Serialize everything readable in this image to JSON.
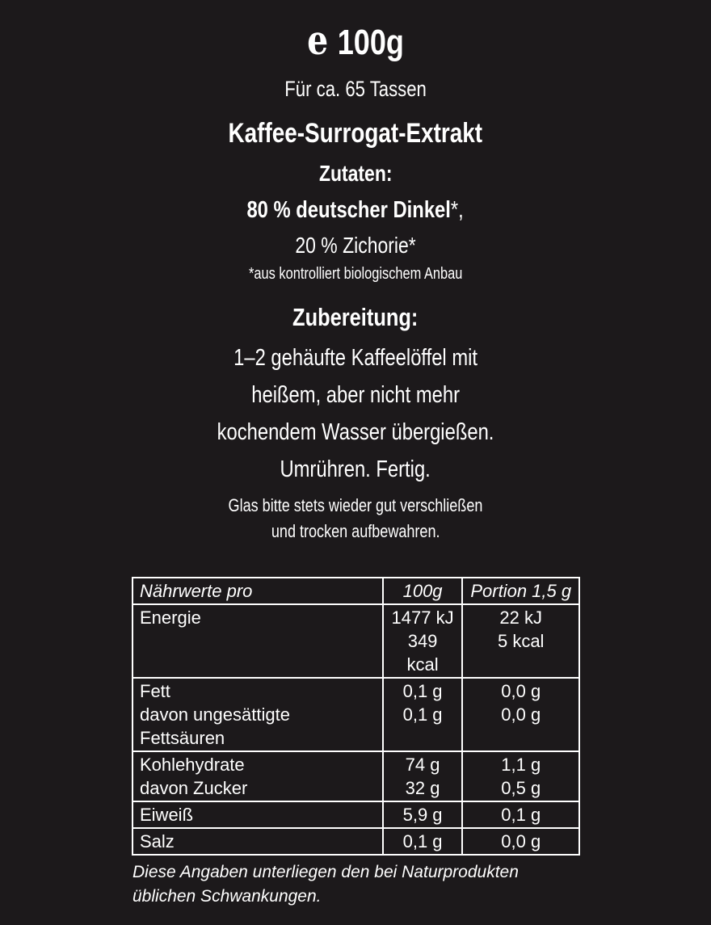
{
  "header": {
    "estimate_mark": "e",
    "net_weight": "100g",
    "servings": "Für ca. 65 Tassen",
    "product_name": "Kaffee-Surrogat-Extrakt"
  },
  "ingredients": {
    "title": "Zutaten:",
    "item1_bold": "80 % deutscher Dinkel",
    "item1_suffix": "*,",
    "item2": "20 % Zichorie*",
    "footnote": "*aus kontrolliert biologischem Anbau"
  },
  "preparation": {
    "title": "Zubereitung:",
    "lines": [
      "1–2 gehäufte Kaffeelöffel mit",
      "heißem, aber nicht mehr",
      "kochendem Wasser übergießen.",
      "Umrühren. Fertig."
    ],
    "storage": [
      "Glas bitte stets wieder gut verschließen",
      "und trocken aufbewahren."
    ]
  },
  "nutrition": {
    "headers": [
      "Nährwerte pro",
      "100g",
      "Portion 1,5 g"
    ],
    "rows": [
      {
        "label": [
          "Energie",
          ""
        ],
        "per100": [
          "1477 kJ",
          "349 kcal"
        ],
        "portion": [
          "22 kJ",
          "5 kcal"
        ]
      },
      {
        "label": [
          "Fett",
          "davon ungesättigte Fettsäuren"
        ],
        "per100": [
          "0,1 g",
          "0,1 g"
        ],
        "portion": [
          "0,0 g",
          "0,0 g"
        ]
      },
      {
        "label": [
          "Kohlehydrate",
          "davon Zucker"
        ],
        "per100": [
          "74 g",
          "32 g"
        ],
        "portion": [
          "1,1 g",
          "0,5 g"
        ]
      },
      {
        "label": [
          "Eiweiß"
        ],
        "per100": [
          "5,9 g"
        ],
        "portion": [
          "0,1 g"
        ]
      },
      {
        "label": [
          "Salz"
        ],
        "per100": [
          "0,1 g"
        ],
        "portion": [
          "0,0 g"
        ]
      }
    ],
    "note": [
      "Diese Angaben unterliegen den bei Naturprodukten",
      "üblichen Schwankungen."
    ]
  },
  "colors": {
    "background": "#1c191b",
    "text": "#ffffff"
  }
}
